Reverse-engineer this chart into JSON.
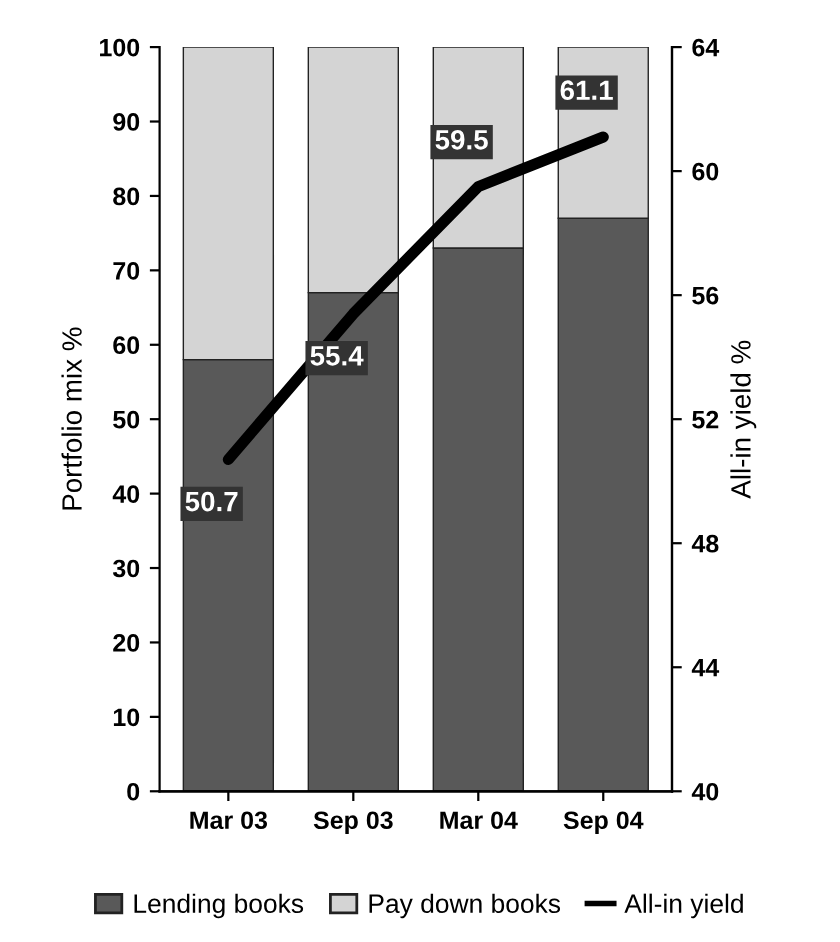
{
  "chart_data": {
    "type": "bar",
    "stacked": true,
    "categories": [
      "Mar 03",
      "Sep 03",
      "Mar 04",
      "Sep 04"
    ],
    "series": [
      {
        "name": "Lending books",
        "color": "#595959",
        "values": [
          58,
          67,
          73,
          77
        ]
      },
      {
        "name": "Pay down books",
        "color": "#d4d4d4",
        "values": [
          42,
          33,
          27,
          23
        ]
      },
      {
        "name": "All-in yield",
        "type": "line",
        "axis": "y2",
        "color": "#000000",
        "values": [
          50.7,
          55.4,
          59.5,
          61.1
        ],
        "value_labels": [
          "50.7",
          "55.4",
          "59.5",
          "61.1"
        ]
      }
    ],
    "ylabel": "Portfolio mix %",
    "y2label": "All-in yield %",
    "ylim": [
      0,
      100
    ],
    "yticks": [
      0,
      10,
      20,
      30,
      40,
      50,
      60,
      70,
      80,
      90,
      100
    ],
    "y2lim": [
      40,
      64
    ],
    "y2ticks": [
      40,
      44,
      48,
      52,
      56,
      60,
      64
    ],
    "grid": false,
    "legend": "bottom",
    "marker": "none"
  }
}
